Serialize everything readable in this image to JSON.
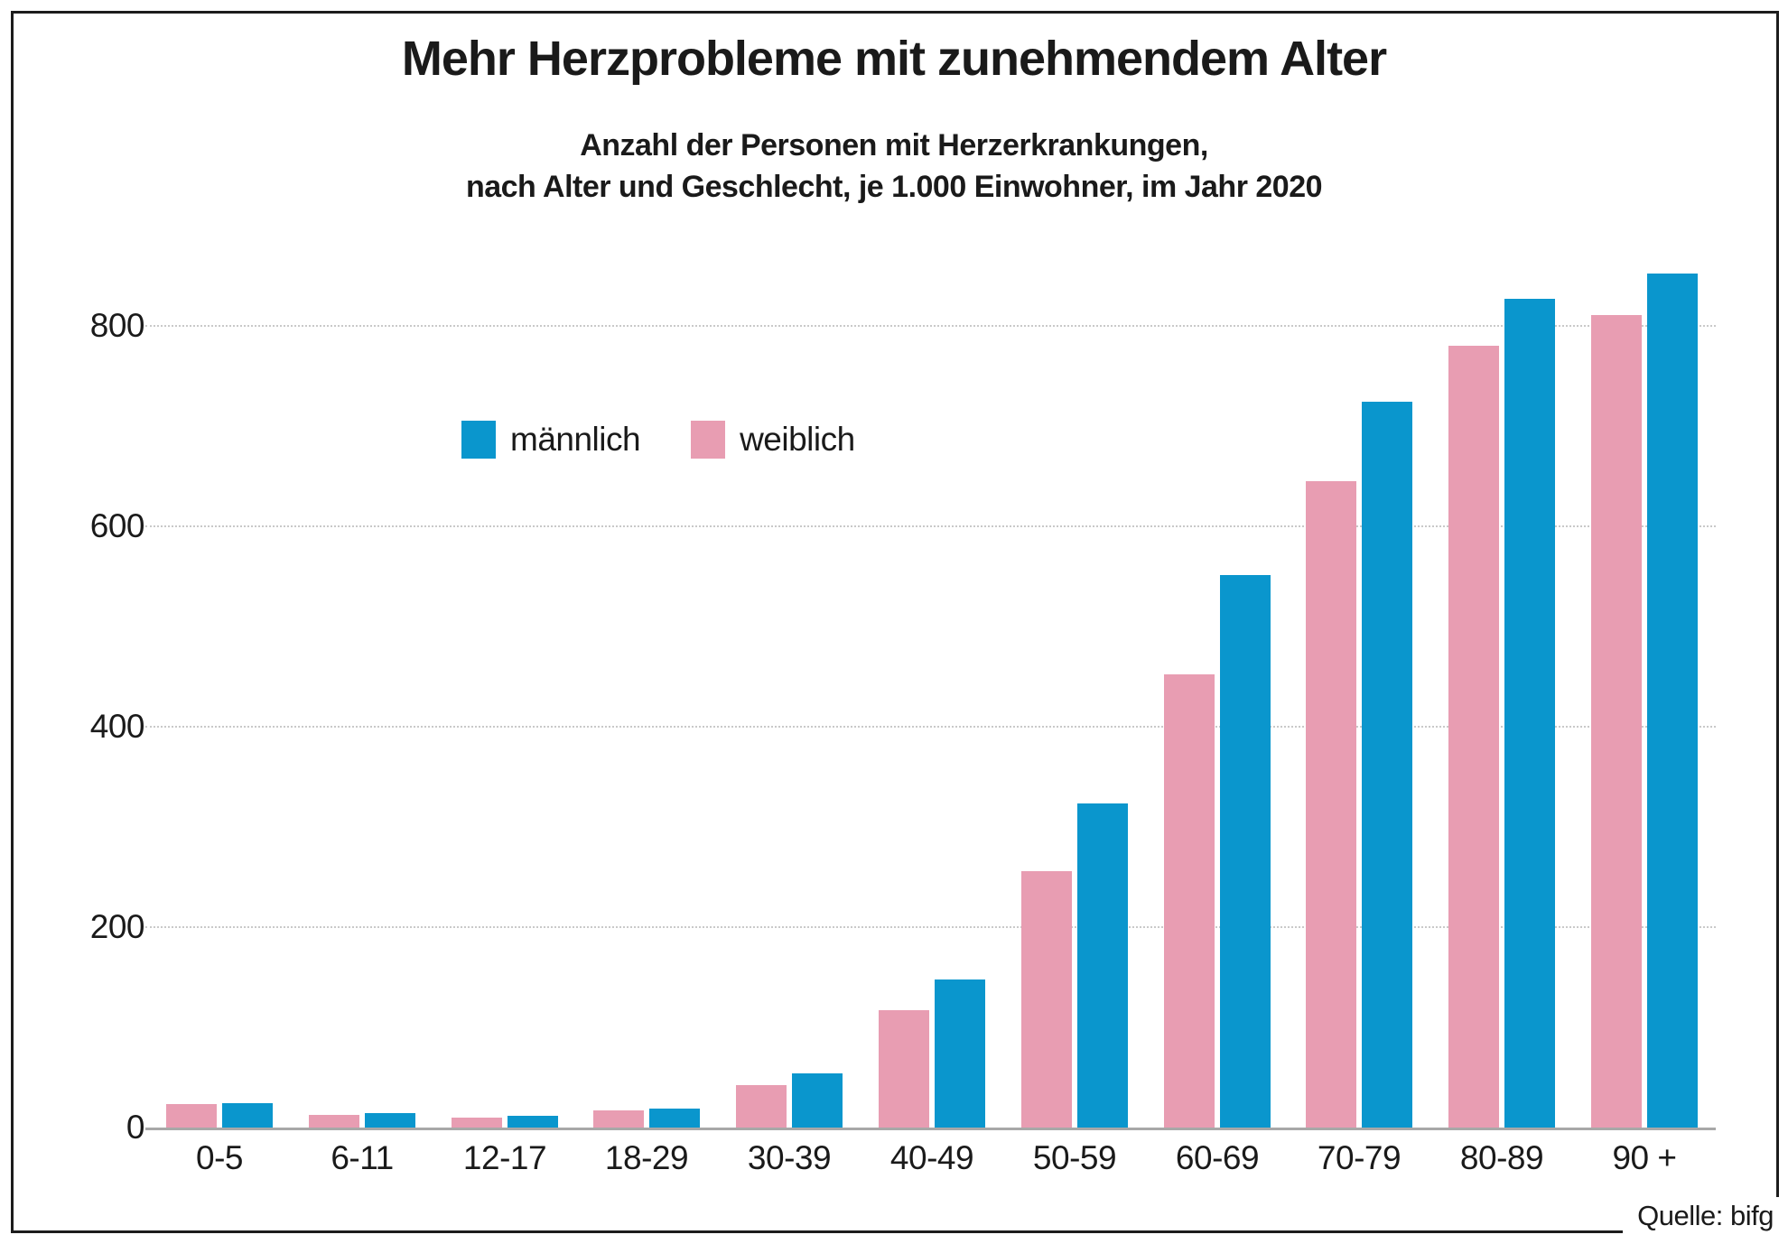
{
  "title": "Mehr Herzprobleme mit zunehmendem Alter",
  "subtitle": {
    "line1": "Anzahl der Personen mit Herzerkrankungen,",
    "line2": "nach Alter und Geschlecht, je 1.000 Einwohner, im Jahr 2020"
  },
  "source_label": "Quelle: bifg",
  "colors": {
    "maennlich_blue": "#0a96cd",
    "weiblich_pink": "#e89db2",
    "grid": "#c9c9c9",
    "axis": "#a8a8a8",
    "border": "#1c1c1c",
    "text": "#1a1a1a"
  },
  "legend": {
    "items": [
      {
        "label": "männlich",
        "color": "#0a96cd"
      },
      {
        "label": "weiblich",
        "color": "#e89db2"
      }
    ]
  },
  "chart_data": {
    "type": "bar",
    "title": "Mehr Herzprobleme mit zunehmendem Alter",
    "subtitle": "Anzahl der Personen mit Herzerkrankungen, nach Alter und Geschlecht, je 1.000 Einwohner, im Jahr 2020",
    "categories": [
      "0-5",
      "6-11",
      "12-17",
      "18-29",
      "30-39",
      "40-49",
      "50-59",
      "60-69",
      "70-79",
      "80-89",
      "90 +"
    ],
    "series": [
      {
        "name": "weiblich",
        "color": "#e89db2",
        "values": [
          23,
          13,
          10,
          17,
          42,
          117,
          256,
          452,
          645,
          780,
          811
        ]
      },
      {
        "name": "männlich",
        "color": "#0a96cd",
        "values": [
          24,
          14,
          12,
          19,
          54,
          148,
          323,
          551,
          724,
          827,
          852
        ]
      }
    ],
    "xlabel": "",
    "ylabel": "",
    "ylim": [
      0,
      855
    ],
    "yticks": [
      0,
      200,
      400,
      600,
      800
    ],
    "grid": "horizontal dotted lines at yticks",
    "legend_position": "inside upper-left area",
    "unit": "je 1.000 Einwohner",
    "source": "Quelle: bifg"
  }
}
